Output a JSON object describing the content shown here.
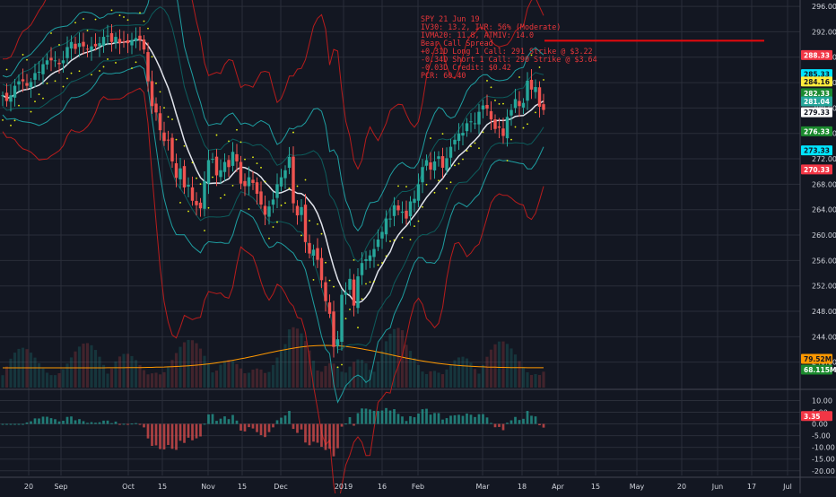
{
  "chart_data": {
    "type": "candlestick",
    "symbol": "SPY",
    "x_ticks": [
      "20",
      "Sep",
      "Oct",
      "15",
      "Nov",
      "15",
      "Dec",
      "2019",
      "16",
      "Feb",
      "Mar",
      "18",
      "Apr",
      "15",
      "May",
      "20",
      "Jun",
      "17",
      "Jul"
    ],
    "price_axis": {
      "ylim": [
        236,
        297
      ],
      "ticks": [
        "296.00",
        "292.00",
        "288.00",
        "284.00",
        "280.00",
        "276.00",
        "272.00",
        "268.00",
        "264.00",
        "260.00",
        "256.00",
        "252.00",
        "248.00",
        "244.00",
        "240.00"
      ],
      "values": [
        296,
        292,
        288,
        284,
        280,
        276,
        272,
        268,
        264,
        260,
        256,
        252,
        248,
        244,
        240
      ]
    },
    "osc_axis": {
      "ylim": [
        -22,
        14
      ],
      "ticks": [
        "10.00",
        "5.00",
        "0.00",
        "-5.00",
        "-10.00",
        "-15.00",
        "-20.00"
      ],
      "values": [
        10,
        5,
        0,
        -5,
        -10,
        -15,
        -20
      ]
    },
    "annotation_lines": [
      "SPY 21 Jun 19",
      "IV30: 13.2, IVR: 56% (Moderate)",
      "IVMA20: 11.8, ATMIV: 14.0",
      "Bear Call Spread",
      "+0.31D Long 1 Call: 291 Strike @ $3.22",
      "-0.34D Short 1 Call: 290 Strike @ $3.64",
      "-0.03D Credit: $0.42",
      "PCR: 60.40"
    ],
    "strike_line_price": 290.6,
    "price_labels": [
      {
        "text": "288.33",
        "value": 288.33,
        "bg": "#f23645",
        "fg": "#ffffff"
      },
      {
        "text": "285.33",
        "value": 285.33,
        "bg": "#00e5ff",
        "fg": "#131722"
      },
      {
        "text": "284.16",
        "value": 284.16,
        "bg": "#ffeb3b",
        "fg": "#131722"
      },
      {
        "text": "282.33",
        "value": 282.33,
        "bg": "#1b8a2e",
        "fg": "#ffffff"
      },
      {
        "text": "281.04",
        "value": 281.04,
        "bg": "#26a69a",
        "fg": "#ffffff"
      },
      {
        "text": "279.33",
        "value": 279.33,
        "bg": "#ffffff",
        "fg": "#131722"
      },
      {
        "text": "276.33",
        "value": 276.33,
        "bg": "#1b8a2e",
        "fg": "#ffffff"
      },
      {
        "text": "273.33",
        "value": 273.33,
        "bg": "#00e5ff",
        "fg": "#131722"
      },
      {
        "text": "270.33",
        "value": 270.33,
        "bg": "#f23645",
        "fg": "#ffffff"
      }
    ],
    "volume_labels": [
      {
        "text": "79.52M",
        "bg": "#ff9800",
        "fg": "#131722"
      },
      {
        "text": "68.115M",
        "bg": "#1b8a2e",
        "fg": "#ffffff"
      }
    ],
    "osc_labels": [
      {
        "text": "3.35",
        "value": 3.35,
        "bg": "#f23645",
        "fg": "#ffffff"
      }
    ],
    "closes": [
      282.0,
      281.1,
      282.0,
      283.5,
      284.2,
      284.2,
      283.5,
      284.1,
      285.5,
      285.7,
      286.9,
      287.5,
      287.5,
      287.5,
      286.9,
      287.5,
      289.6,
      290.4,
      289.3,
      290.2,
      289.7,
      289.2,
      289.7,
      289.7,
      290.2,
      291.2,
      291.4,
      290.4,
      291.2,
      290.2,
      290.4,
      290.2,
      290.7,
      291.0,
      290.7,
      289.2,
      284.2,
      280.3,
      279.3,
      276.5,
      274.8,
      275.0,
      271.6,
      269.0,
      270.5,
      267.5,
      267.9,
      265.4,
      264.7,
      264.2,
      268.5,
      271.8,
      272.0,
      269.4,
      270.2,
      271.5,
      270.7,
      273.1,
      271.6,
      268.1,
      267.7,
      269.1,
      268.2,
      266.5,
      264.8,
      263.2,
      264.5,
      265.6,
      268.0,
      269.1,
      270.2,
      272.3,
      265.0,
      263.1,
      264.4,
      258.9,
      257.1,
      257.7,
      256.1,
      252.9,
      249.6,
      247.6,
      242.4,
      243.6,
      250.6,
      251.0,
      253.1,
      248.9,
      253.5,
      255.6,
      256.2,
      256.8,
      257.8,
      259.3,
      260.5,
      262.6,
      262.6,
      264.7,
      263.9,
      263.7,
      262.6,
      265.3,
      265.7,
      268.0,
      270.7,
      271.8,
      270.3,
      271.6,
      272.4,
      270.6,
      272.1,
      273.9,
      275.0,
      276.0,
      276.1,
      277.6,
      277.9,
      277.6,
      279.4,
      280.4,
      279.9,
      278.2,
      276.7,
      276.9,
      275.6,
      278.6,
      279.7,
      281.4,
      280.3,
      280.8,
      284.3,
      282.9,
      283.3,
      280.2,
      279.7
    ],
    "volume_axis": {
      "max": 243.6
    }
  }
}
